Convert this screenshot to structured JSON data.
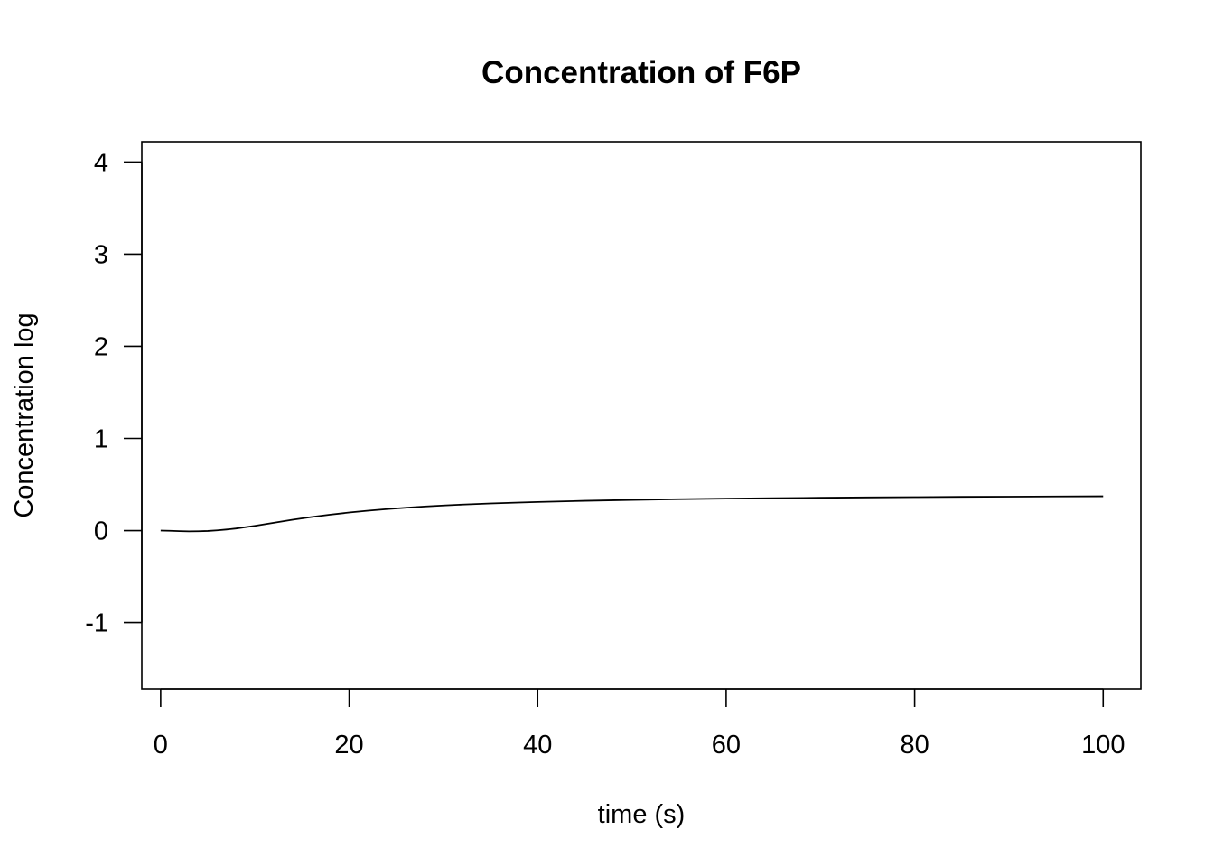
{
  "chart_data": {
    "type": "line",
    "title": "Concentration of F6P",
    "xlabel": "time (s)",
    "ylabel": "Concentration log",
    "xlim": [
      -2,
      104
    ],
    "ylim": [
      -1.72,
      4.22
    ],
    "xticks": [
      0,
      20,
      40,
      60,
      80,
      100
    ],
    "yticks": [
      -1,
      0,
      1,
      2,
      3,
      4
    ],
    "grid": false,
    "legend": "none",
    "series": [
      {
        "color": "#000000",
        "x": [
          0,
          1,
          2,
          3,
          4,
          5,
          6,
          7,
          8,
          10,
          12,
          14,
          16,
          18,
          20,
          22,
          24,
          26,
          28,
          30,
          32,
          35,
          38,
          40,
          45,
          50,
          55,
          60,
          65,
          70,
          75,
          80,
          85,
          90,
          95,
          100
        ],
        "y": [
          0.0,
          -0.002,
          -0.006,
          -0.008,
          -0.007,
          -0.004,
          0.003,
          0.012,
          0.023,
          0.052,
          0.085,
          0.118,
          0.147,
          0.173,
          0.196,
          0.216,
          0.233,
          0.248,
          0.261,
          0.272,
          0.282,
          0.294,
          0.304,
          0.31,
          0.323,
          0.333,
          0.341,
          0.347,
          0.352,
          0.356,
          0.36,
          0.363,
          0.366,
          0.368,
          0.37,
          0.372
        ]
      }
    ]
  }
}
